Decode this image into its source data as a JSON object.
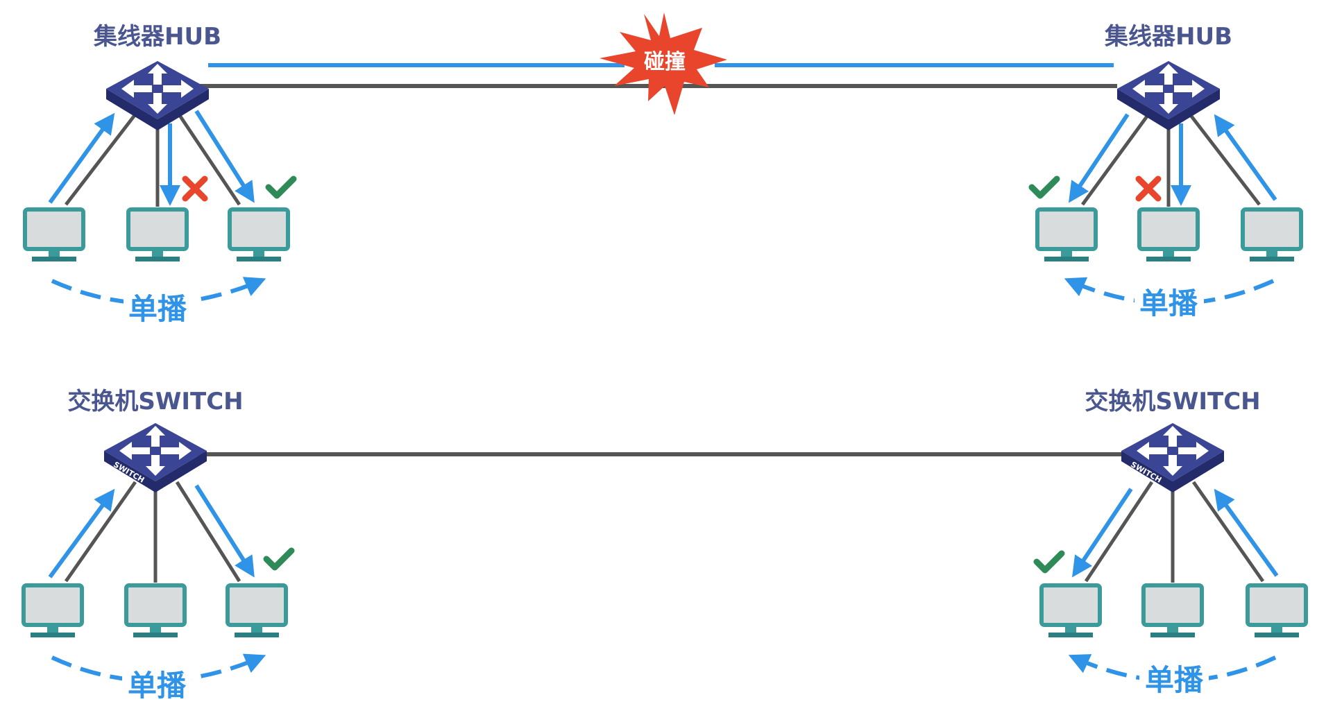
{
  "top_left": {
    "device_label": "集线器HUB",
    "unicast_label": "单播"
  },
  "top_right": {
    "device_label": "集线器HUB",
    "unicast_label": "单播"
  },
  "bottom_left": {
    "device_label": "交换机SWITCH",
    "unicast_label": "单播",
    "device_mark": "SWITCH"
  },
  "bottom_right": {
    "device_label": "交换机SWITCH",
    "unicast_label": "单播",
    "device_mark": "SWITCH"
  },
  "collision_label": "碰撞",
  "icons": [
    "hub-icon",
    "switch-icon",
    "computer-icon",
    "check-icon",
    "cross-icon",
    "collision-burst-icon"
  ],
  "colors": {
    "arrow_blue": "#2f93e8",
    "cable_gray": "#555555",
    "device_navy": "#3a4596",
    "monitor_teal": "#3b9a9a",
    "check_green": "#2e8b57",
    "cross_red": "#e8452c",
    "collision_red": "#e8452c"
  }
}
